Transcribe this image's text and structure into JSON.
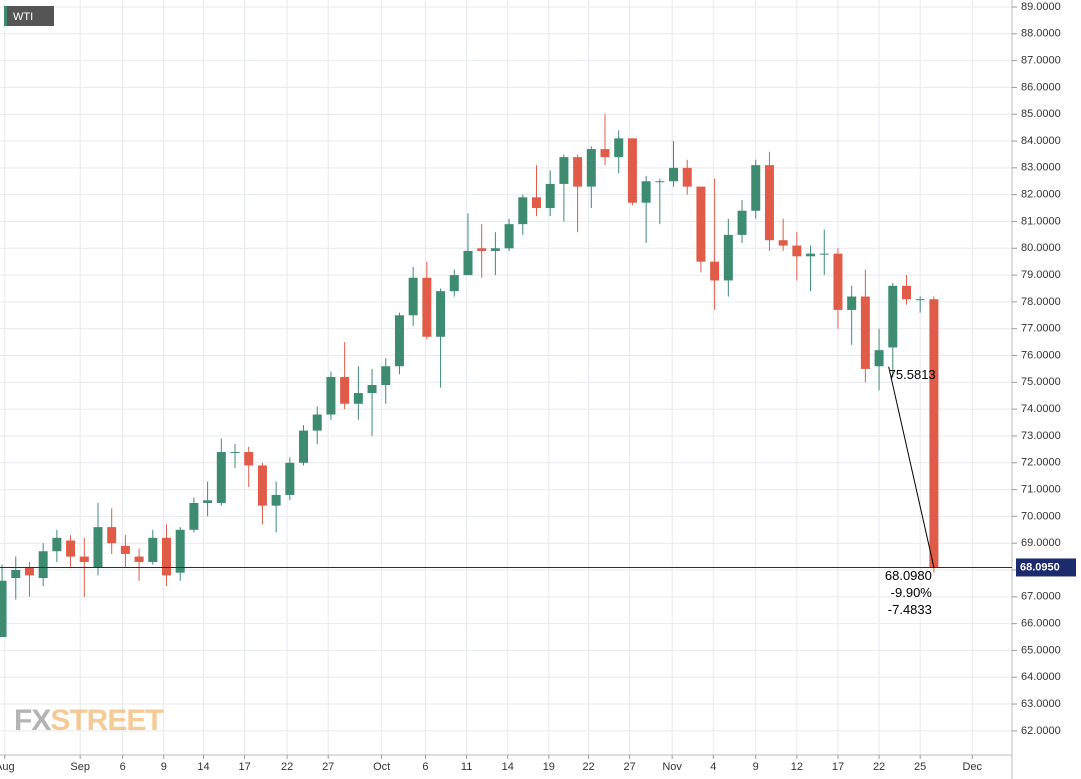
{
  "chart_data": {
    "type": "candlestick",
    "title": "WTI",
    "open": [
      65.5,
      67.7,
      68.1,
      67.7,
      68.7,
      69.1,
      68.5,
      68.1,
      69.6,
      68.9,
      68.5,
      68.3,
      69.2,
      67.9,
      69.5,
      70.5,
      70.5,
      72.4,
      72.4,
      71.9,
      70.4,
      70.8,
      72.0,
      73.2,
      73.8,
      75.2,
      74.2,
      74.6,
      74.9,
      75.6,
      77.5,
      78.9,
      76.7,
      78.4,
      79.0,
      80.0,
      79.9,
      80.0,
      80.9,
      81.9,
      81.5,
      82.4,
      83.4,
      82.3,
      83.7,
      83.4,
      84.1,
      81.7,
      82.5,
      82.5,
      83.0,
      82.3,
      79.5,
      78.8,
      80.5,
      81.4,
      83.1,
      80.3,
      80.1,
      79.7,
      79.8,
      79.8,
      77.7,
      78.2,
      75.6,
      76.3,
      78.6,
      78.1,
      78.1
    ],
    "high": [
      68.2,
      68.5,
      68.3,
      69.0,
      69.5,
      69.3,
      69.2,
      70.5,
      70.3,
      69.3,
      68.8,
      69.5,
      69.7,
      69.6,
      70.7,
      71.3,
      72.9,
      72.7,
      72.6,
      72.0,
      71.3,
      72.2,
      73.4,
      74.1,
      75.4,
      76.5,
      75.6,
      75.5,
      75.9,
      77.6,
      79.3,
      79.5,
      78.5,
      79.2,
      81.3,
      80.9,
      80.6,
      81.1,
      82.0,
      83.1,
      82.9,
      83.5,
      83.5,
      83.8,
      85.0,
      84.4,
      84.1,
      82.7,
      82.6,
      84.0,
      83.3,
      82.3,
      82.6,
      81.1,
      81.8,
      83.3,
      83.6,
      81.1,
      80.6,
      80.1,
      80.7,
      80.0,
      78.6,
      79.2,
      77.0,
      78.7,
      79.0,
      78.2,
      78.2
    ],
    "low": [
      65.5,
      66.9,
      67.0,
      67.4,
      68.3,
      68.1,
      67.0,
      67.8,
      68.6,
      68.1,
      67.6,
      68.2,
      67.4,
      67.6,
      69.4,
      70.0,
      70.4,
      71.8,
      71.1,
      69.7,
      69.4,
      70.6,
      71.9,
      72.7,
      73.6,
      74.0,
      73.6,
      73.0,
      74.2,
      75.3,
      77.1,
      76.6,
      74.8,
      78.2,
      79.0,
      78.9,
      79.0,
      79.9,
      80.5,
      81.2,
      81.2,
      81.0,
      80.6,
      81.5,
      83.1,
      82.8,
      81.6,
      80.2,
      80.9,
      82.3,
      82.0,
      79.1,
      77.7,
      78.2,
      80.2,
      81.1,
      79.9,
      79.9,
      78.8,
      78.4,
      79.0,
      77.0,
      76.4,
      75.0,
      74.7,
      75.2,
      77.9,
      77.6,
      67.9
    ],
    "close": [
      67.6,
      68.0,
      67.8,
      68.7,
      69.2,
      68.5,
      68.3,
      69.6,
      69.0,
      68.6,
      68.3,
      69.2,
      67.8,
      69.5,
      70.5,
      70.6,
      72.4,
      72.4,
      71.9,
      70.4,
      70.8,
      72.0,
      73.2,
      73.8,
      75.2,
      74.2,
      74.6,
      74.9,
      75.6,
      77.5,
      78.9,
      76.7,
      78.4,
      79.0,
      79.9,
      79.9,
      80.0,
      80.9,
      81.9,
      81.5,
      82.4,
      83.4,
      82.3,
      83.7,
      83.4,
      84.1,
      81.7,
      82.5,
      82.5,
      83.0,
      82.3,
      79.5,
      78.8,
      80.5,
      81.4,
      83.1,
      80.3,
      80.1,
      79.7,
      79.8,
      79.8,
      77.7,
      78.2,
      75.5,
      76.2,
      78.6,
      78.1,
      78.1,
      68.1
    ],
    "up_color": "#3d8c72",
    "down_color": "#e05c48",
    "xlim": [
      -0.15,
      73.7
    ],
    "xticks": [
      {
        "value": 0.2,
        "label": "Aug"
      },
      {
        "value": 5.7,
        "label": "Sep"
      },
      {
        "value": 8.8,
        "label": "6"
      },
      {
        "value": 11.8,
        "label": "9"
      },
      {
        "value": 14.7,
        "label": "14"
      },
      {
        "value": 17.7,
        "label": "17"
      },
      {
        "value": 20.8,
        "label": "22"
      },
      {
        "value": 23.8,
        "label": "27"
      },
      {
        "value": 27.7,
        "label": "Oct"
      },
      {
        "value": 30.9,
        "label": "6"
      },
      {
        "value": 33.9,
        "label": "11"
      },
      {
        "value": 36.9,
        "label": "14"
      },
      {
        "value": 39.9,
        "label": "19"
      },
      {
        "value": 42.8,
        "label": "22"
      },
      {
        "value": 45.8,
        "label": "27"
      },
      {
        "value": 48.9,
        "label": "Nov"
      },
      {
        "value": 51.9,
        "label": "4"
      },
      {
        "value": 55.0,
        "label": "9"
      },
      {
        "value": 58.0,
        "label": "12"
      },
      {
        "value": 61.0,
        "label": "17"
      },
      {
        "value": 64.0,
        "label": "22"
      },
      {
        "value": 67.0,
        "label": "25"
      },
      {
        "value": 70.8,
        "label": "Dec"
      }
    ],
    "ylim": [
      61.1,
      89.26
    ],
    "yticks": [
      {
        "value": 62,
        "label": "62.0000"
      },
      {
        "value": 63,
        "label": "63.0000"
      },
      {
        "value": 64,
        "label": "64.0000"
      },
      {
        "value": 65,
        "label": "65.0000"
      },
      {
        "value": 66,
        "label": "66.0000"
      },
      {
        "value": 67,
        "label": "67.0000"
      },
      {
        "value": 68,
        "label": "68.0000"
      },
      {
        "value": 69,
        "label": "69.0000"
      },
      {
        "value": 70,
        "label": "70.0000"
      },
      {
        "value": 71,
        "label": "71.0000"
      },
      {
        "value": 72,
        "label": "72.0000"
      },
      {
        "value": 73,
        "label": "73.0000"
      },
      {
        "value": 74,
        "label": "74.0000"
      },
      {
        "value": 75,
        "label": "75.0000"
      },
      {
        "value": 76,
        "label": "76.0000"
      },
      {
        "value": 77,
        "label": "77.0000"
      },
      {
        "value": 78,
        "label": "78.0000"
      },
      {
        "value": 79,
        "label": "79.0000"
      },
      {
        "value": 80,
        "label": "80.0000"
      },
      {
        "value": 81,
        "label": "81.0000"
      },
      {
        "value": 82,
        "label": "82.0000"
      },
      {
        "value": 83,
        "label": "83.0000"
      },
      {
        "value": 84,
        "label": "84.0000"
      },
      {
        "value": 85,
        "label": "85.0000"
      },
      {
        "value": 86,
        "label": "86.0000"
      },
      {
        "value": 87,
        "label": "87.0000"
      },
      {
        "value": 88,
        "label": "88.0000"
      },
      {
        "value": 89,
        "label": "89.0000"
      }
    ],
    "grid": true,
    "last_price": {
      "value": 68.095,
      "label": "68.0950"
    },
    "measure": {
      "start_x": 64.7,
      "end_x": 68,
      "start": {
        "value": 75.5813,
        "label": "75.5813"
      },
      "end": {
        "value": 68.098,
        "label": "68.0980"
      },
      "change_percent": {
        "value": -9.9,
        "label": "-9.90%"
      },
      "change": -7.4833
    },
    "watermark": [
      "FX",
      "STREET"
    ]
  }
}
